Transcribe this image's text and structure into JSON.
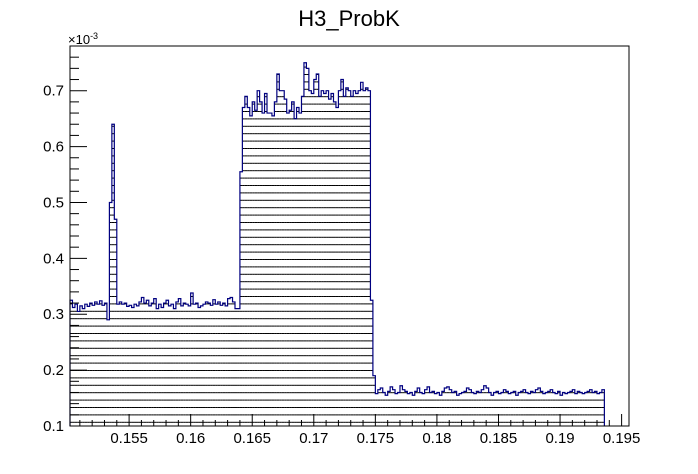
{
  "chart_data": {
    "type": "bar",
    "title": "H3_ProbK",
    "xlabel": "",
    "ylabel": "",
    "xlim": [
      0.1502,
      0.1956
    ],
    "ylim": [
      0.1,
      0.78
    ],
    "y_multiplier_label": "×10",
    "y_multiplier_exponent": "-3",
    "x_ticks": [
      0.155,
      0.16,
      0.165,
      0.17,
      0.175,
      0.18,
      0.185,
      0.19,
      0.195
    ],
    "x_tick_labels": [
      "0.155",
      "0.16",
      "0.165",
      "0.17",
      "0.175",
      "0.18",
      "0.185",
      "0.19",
      "0.195"
    ],
    "y_ticks": [
      0.1,
      0.2,
      0.3,
      0.4,
      0.5,
      0.6,
      0.7
    ],
    "y_tick_labels": [
      "0.1",
      "0.2",
      "0.3",
      "0.4",
      "0.5",
      "0.6",
      "0.7"
    ],
    "grid": false,
    "fill_style": "horizontal-hatch",
    "line_color": "#000080",
    "hatch_color": "#000000",
    "bin_start": 0.1502,
    "bin_width": 0.0002,
    "values": [
      0.325,
      0.312,
      0.318,
      0.305,
      0.315,
      0.31,
      0.318,
      0.314,
      0.32,
      0.316,
      0.322,
      0.318,
      0.324,
      0.316,
      0.32,
      0.29,
      0.5,
      0.64,
      0.47,
      0.318,
      0.322,
      0.318,
      0.32,
      0.314,
      0.316,
      0.312,
      0.318,
      0.315,
      0.322,
      0.33,
      0.32,
      0.325,
      0.315,
      0.32,
      0.328,
      0.31,
      0.318,
      0.312,
      0.32,
      0.325,
      0.315,
      0.318,
      0.31,
      0.322,
      0.328,
      0.315,
      0.32,
      0.318,
      0.315,
      0.338,
      0.318,
      0.32,
      0.312,
      0.315,
      0.318,
      0.322,
      0.32,
      0.316,
      0.326,
      0.318,
      0.322,
      0.316,
      0.32,
      0.315,
      0.328,
      0.33,
      0.322,
      0.31,
      0.31,
      0.555,
      0.67,
      0.69,
      0.67,
      0.655,
      0.68,
      0.665,
      0.7,
      0.68,
      0.66,
      0.695,
      0.66,
      0.66,
      0.655,
      0.68,
      0.73,
      0.7,
      0.7,
      0.685,
      0.66,
      0.665,
      0.68,
      0.65,
      0.67,
      0.66,
      0.69,
      0.75,
      0.74,
      0.7,
      0.695,
      0.72,
      0.73,
      0.69,
      0.7,
      0.695,
      0.7,
      0.685,
      0.695,
      0.68,
      0.67,
      0.7,
      0.72,
      0.69,
      0.705,
      0.7,
      0.69,
      0.7,
      0.695,
      0.7,
      0.715,
      0.7,
      0.705,
      0.7,
      0.325,
      0.19,
      0.158,
      0.165,
      0.168,
      0.16,
      0.155,
      0.162,
      0.17,
      0.165,
      0.158,
      0.16,
      0.172,
      0.165,
      0.162,
      0.158,
      0.16,
      0.155,
      0.162,
      0.168,
      0.16,
      0.158,
      0.165,
      0.17,
      0.16,
      0.162,
      0.158,
      0.16,
      0.155,
      0.162,
      0.168,
      0.17,
      0.165,
      0.16,
      0.162,
      0.155,
      0.158,
      0.16,
      0.162,
      0.168,
      0.165,
      0.16,
      0.158,
      0.162,
      0.16,
      0.165,
      0.172,
      0.168,
      0.16,
      0.155,
      0.16,
      0.162,
      0.158,
      0.16,
      0.165,
      0.162,
      0.158,
      0.16,
      0.162,
      0.155,
      0.16,
      0.162,
      0.165,
      0.16,
      0.158,
      0.162,
      0.16,
      0.165,
      0.168,
      0.162,
      0.158,
      0.16,
      0.162,
      0.165,
      0.16,
      0.158,
      0.162,
      0.155,
      0.16,
      0.158,
      0.16,
      0.162,
      0.165,
      0.158,
      0.162,
      0.16,
      0.158,
      0.16,
      0.162,
      0.165,
      0.16,
      0.162,
      0.158,
      0.16,
      0.165
    ]
  }
}
